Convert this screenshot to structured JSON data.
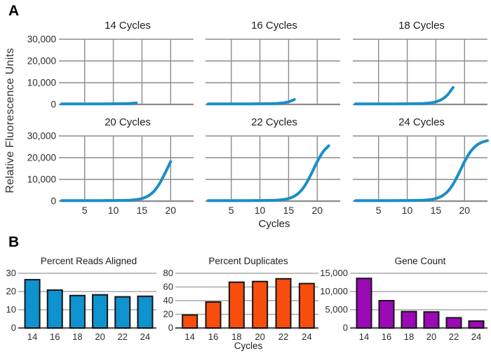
{
  "panel_a": {
    "label": "A",
    "y_axis_label": "Relative Fluorescence Units",
    "x_axis_label": "Cycles",
    "xlim": [
      1,
      24
    ],
    "ylim": [
      0,
      30000
    ],
    "x_ticks": [
      {
        "v": 5,
        "label": "5"
      },
      {
        "v": 10,
        "label": "10"
      },
      {
        "v": 15,
        "label": "15"
      },
      {
        "v": 20,
        "label": "20"
      }
    ],
    "y_ticks": [
      {
        "v": 0,
        "label": "0"
      },
      {
        "v": 10000,
        "label": "10,000"
      },
      {
        "v": 20000,
        "label": "20,000"
      },
      {
        "v": 30000,
        "label": "30,000"
      }
    ],
    "curve_color": "#1a8ec9",
    "grid_color": "#8c8c8c"
  },
  "panel_b": {
    "label": "B",
    "grid_color": "#a8a8a8",
    "axis_color": "#606060",
    "bar_outline_color": "#141414"
  },
  "chart_data": [
    {
      "type": "line",
      "panel": "A",
      "title": "14 Cycles",
      "xlabel": "",
      "ylabel": "Relative Fluorescence Units",
      "xlim": [
        1,
        24
      ],
      "ylim": [
        0,
        30000
      ],
      "grid": true,
      "show_y_tick_labels": true,
      "show_x_tick_labels": false,
      "color": "#1a8ec9",
      "x": [
        1,
        2,
        3,
        4,
        5,
        6,
        7,
        8,
        9,
        10,
        11,
        12,
        13,
        14
      ],
      "y": [
        250,
        250,
        250,
        250,
        250,
        250,
        255,
        260,
        270,
        285,
        310,
        350,
        460,
        700
      ]
    },
    {
      "type": "line",
      "panel": "A",
      "title": "16 Cycles",
      "xlabel": "",
      "ylabel": "",
      "xlim": [
        1,
        24
      ],
      "ylim": [
        0,
        30000
      ],
      "grid": true,
      "show_y_tick_labels": false,
      "show_x_tick_labels": false,
      "color": "#1a8ec9",
      "x": [
        1,
        2,
        3,
        4,
        5,
        6,
        7,
        8,
        9,
        10,
        11,
        12,
        13,
        14,
        15,
        16
      ],
      "y": [
        250,
        250,
        250,
        250,
        250,
        250,
        255,
        260,
        270,
        285,
        310,
        350,
        460,
        700,
        1210,
        2260
      ]
    },
    {
      "type": "line",
      "panel": "A",
      "title": "18 Cycles",
      "xlabel": "",
      "ylabel": "",
      "xlim": [
        1,
        24
      ],
      "ylim": [
        0,
        30000
      ],
      "grid": true,
      "show_y_tick_labels": false,
      "show_x_tick_labels": false,
      "color": "#1a8ec9",
      "x": [
        1,
        2,
        3,
        4,
        5,
        6,
        7,
        8,
        9,
        10,
        11,
        12,
        13,
        14,
        15,
        16,
        17,
        18
      ],
      "y": [
        250,
        250,
        250,
        250,
        250,
        250,
        255,
        260,
        270,
        285,
        310,
        350,
        460,
        700,
        1210,
        2260,
        4300,
        7800
      ]
    },
    {
      "type": "line",
      "panel": "A",
      "title": "20 Cycles",
      "xlabel": "",
      "ylabel": "",
      "xlim": [
        1,
        24
      ],
      "ylim": [
        0,
        30000
      ],
      "grid": true,
      "show_y_tick_labels": true,
      "show_x_tick_labels": true,
      "color": "#1a8ec9",
      "x": [
        1,
        2,
        3,
        4,
        5,
        6,
        7,
        8,
        9,
        10,
        11,
        12,
        13,
        14,
        15,
        16,
        17,
        18,
        19,
        20
      ],
      "y": [
        250,
        250,
        250,
        250,
        250,
        250,
        255,
        260,
        270,
        285,
        310,
        350,
        460,
        700,
        1210,
        2260,
        4300,
        7800,
        12770,
        18200
      ]
    },
    {
      "type": "line",
      "panel": "A",
      "title": "22 Cycles",
      "xlabel": "Cycles",
      "ylabel": "",
      "xlim": [
        1,
        24
      ],
      "ylim": [
        0,
        30000
      ],
      "grid": true,
      "show_y_tick_labels": false,
      "show_x_tick_labels": true,
      "color": "#1a8ec9",
      "x": [
        1,
        2,
        3,
        4,
        5,
        6,
        7,
        8,
        9,
        10,
        11,
        12,
        13,
        14,
        15,
        16,
        17,
        18,
        19,
        20,
        21,
        22
      ],
      "y": [
        250,
        250,
        250,
        250,
        250,
        250,
        255,
        260,
        270,
        285,
        310,
        350,
        460,
        700,
        1210,
        2260,
        4300,
        7800,
        12770,
        18200,
        22640,
        25500
      ]
    },
    {
      "type": "line",
      "panel": "A",
      "title": "24 Cycles",
      "xlabel": "",
      "ylabel": "",
      "xlim": [
        1,
        24
      ],
      "ylim": [
        0,
        30000
      ],
      "grid": true,
      "show_y_tick_labels": false,
      "show_x_tick_labels": true,
      "color": "#1a8ec9",
      "x": [
        1,
        2,
        3,
        4,
        5,
        6,
        7,
        8,
        9,
        10,
        11,
        12,
        13,
        14,
        15,
        16,
        17,
        18,
        19,
        20,
        21,
        22,
        23,
        24
      ],
      "y": [
        250,
        250,
        250,
        250,
        250,
        250,
        255,
        260,
        270,
        285,
        310,
        350,
        460,
        700,
        1210,
        2260,
        4300,
        7800,
        12770,
        18200,
        22640,
        25500,
        27060,
        27850
      ]
    },
    {
      "type": "bar",
      "panel": "B",
      "title": "Percent Reads Aligned",
      "xlabel": "",
      "ylabel": "",
      "categories": [
        "14",
        "16",
        "18",
        "20",
        "22",
        "24"
      ],
      "values": [
        26.5,
        20.8,
        17.8,
        18.2,
        17.1,
        17.4
      ],
      "ylim": [
        0,
        30
      ],
      "y_ticks": [
        {
          "v": 0,
          "label": "0"
        },
        {
          "v": 10,
          "label": "10"
        },
        {
          "v": 20,
          "label": "20"
        },
        {
          "v": 30,
          "label": "30"
        }
      ],
      "color": "#0e93cf"
    },
    {
      "type": "bar",
      "panel": "B",
      "title": "Percent Duplicates",
      "xlabel": "Cycles",
      "ylabel": "",
      "categories": [
        "14",
        "16",
        "18",
        "20",
        "22",
        "24"
      ],
      "values": [
        19,
        38,
        67,
        68,
        72,
        65
      ],
      "ylim": [
        0,
        80
      ],
      "y_ticks": [
        {
          "v": 0,
          "label": "0"
        },
        {
          "v": 20,
          "label": "20"
        },
        {
          "v": 40,
          "label": "40"
        },
        {
          "v": 60,
          "label": "60"
        },
        {
          "v": 80,
          "label": "80"
        }
      ],
      "color": "#f94d0d"
    },
    {
      "type": "bar",
      "panel": "B",
      "title": "Gene Count",
      "xlabel": "",
      "ylabel": "",
      "categories": [
        "14",
        "16",
        "18",
        "20",
        "22",
        "24"
      ],
      "values": [
        13600,
        7500,
        4500,
        4400,
        2800,
        1900
      ],
      "ylim": [
        0,
        15000
      ],
      "y_ticks": [
        {
          "v": 0,
          "label": "0"
        },
        {
          "v": 5000,
          "label": "5,000"
        },
        {
          "v": 10000,
          "label": "10,000"
        },
        {
          "v": 15000,
          "label": "15,000"
        }
      ],
      "color": "#9b0ab6"
    }
  ]
}
